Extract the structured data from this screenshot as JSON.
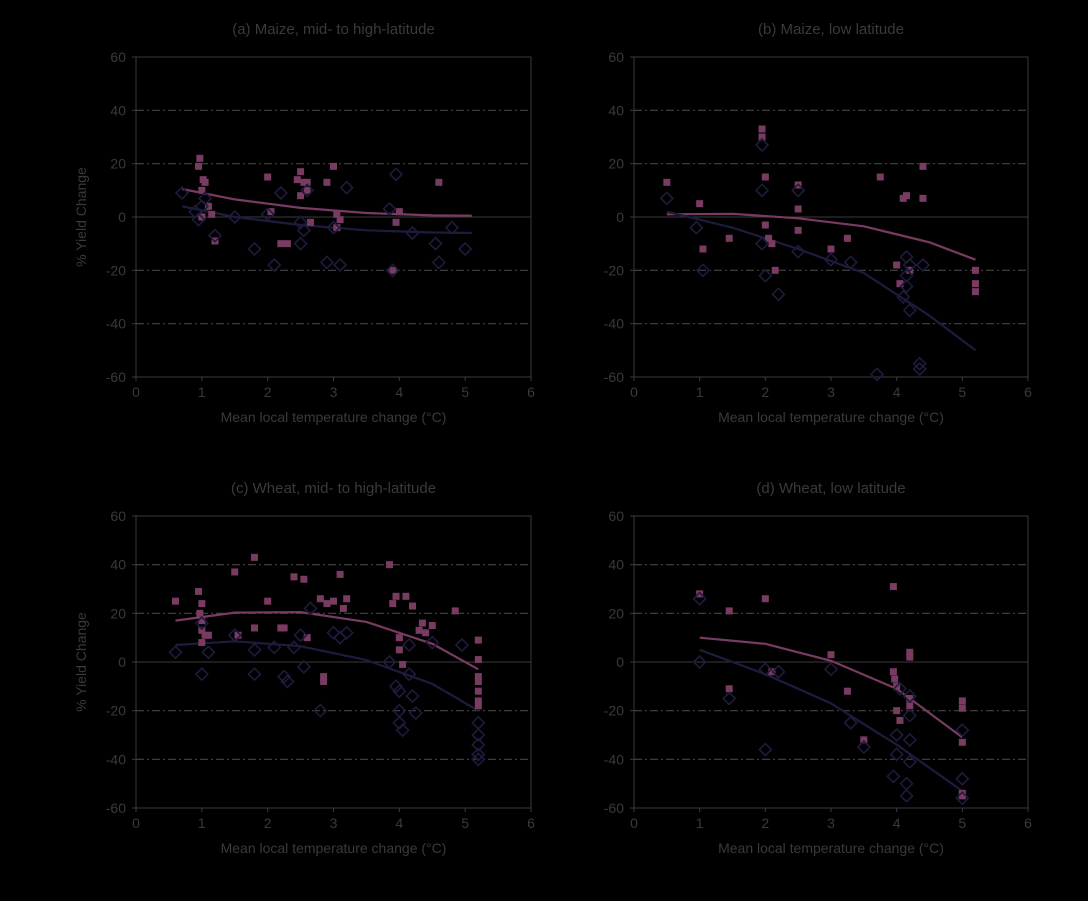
{
  "colors": {
    "background": "#000000",
    "axis": "#3a3a3a",
    "grid": "#444444",
    "square_series": "#7a3b62",
    "diamond_series": "#1e1b3e"
  },
  "chart_data": [
    {
      "type": "scatter",
      "title": "(a) Maize, mid- to high-latitude",
      "xlabel": "Mean local temperature change (°C)",
      "ylabel": "% Yield Change",
      "xlim": [
        0,
        6
      ],
      "ylim": [
        -60,
        60
      ],
      "xticks": [
        "0",
        "1",
        "2",
        "3",
        "4",
        "5",
        "6"
      ],
      "yticks": [
        "60",
        "40",
        "20",
        "0",
        "-20",
        "-40",
        "-60"
      ],
      "grid": "dash-dot horizontal lines at ±20 and ±40; solid line at 0",
      "series": [
        {
          "marker": "square",
          "x": [
            0.95,
            0.97,
            1.0,
            1.0,
            1.02,
            1.05,
            1.1,
            1.15,
            1.2,
            2.0,
            2.05,
            2.2,
            2.3,
            2.45,
            2.5,
            2.5,
            2.55,
            2.6,
            2.6,
            2.65,
            2.9,
            3.0,
            3.05,
            3.05,
            3.1,
            3.9,
            3.95,
            4.0,
            4.6
          ],
          "y": [
            19,
            22,
            10,
            0,
            14,
            13,
            4,
            1,
            -9,
            15,
            2,
            -10,
            -10,
            14,
            8,
            17,
            13,
            13,
            10,
            -2,
            13,
            19,
            1,
            -4,
            -1,
            -20,
            -2,
            2,
            13
          ]
        },
        {
          "marker": "diamond",
          "x": [
            0.7,
            0.9,
            0.95,
            1.0,
            1.05,
            1.2,
            1.5,
            1.8,
            2.0,
            2.1,
            2.2,
            2.5,
            2.5,
            2.55,
            2.6,
            2.9,
            3.0,
            3.1,
            3.2,
            3.85,
            3.9,
            3.95,
            4.2,
            4.55,
            4.6,
            4.8,
            5.0
          ],
          "y": [
            9,
            2,
            -1,
            4,
            7,
            -7,
            0,
            -12,
            1,
            -18,
            9,
            -2,
            -10,
            -5,
            10,
            -17,
            -4,
            -18,
            11,
            3,
            -20,
            16,
            -6,
            -10,
            -17,
            -4,
            -12
          ]
        }
      ],
      "fits": [
        {
          "marker": "square",
          "x": [
            0.7,
            1.5,
            2.5,
            3.5,
            4.5,
            5.1
          ],
          "y": [
            10.5,
            6.6,
            3.4,
            1.5,
            0.6,
            0.5
          ]
        },
        {
          "marker": "diamond",
          "x": [
            0.7,
            1.5,
            2.5,
            3.5,
            4.5,
            5.1
          ],
          "y": [
            4.0,
            0.0,
            -3.0,
            -5.0,
            -5.8,
            -6.0
          ]
        }
      ]
    },
    {
      "type": "scatter",
      "title": "(b) Maize, low latitude",
      "xlabel": "Mean local temperature change (°C)",
      "ylabel": "",
      "xlim": [
        0,
        6
      ],
      "ylim": [
        -60,
        60
      ],
      "xticks": [
        "0",
        "1",
        "2",
        "3",
        "4",
        "5",
        "6"
      ],
      "yticks": [
        "60",
        "40",
        "20",
        "0",
        "-20",
        "-40",
        "-60"
      ],
      "grid": "dash-dot horizontal lines at ±20 and ±40; solid line at 0",
      "series": [
        {
          "marker": "square",
          "x": [
            0.5,
            1.0,
            1.05,
            1.45,
            1.95,
            1.95,
            2.0,
            2.0,
            2.05,
            2.1,
            2.15,
            2.5,
            2.5,
            2.5,
            3.0,
            3.25,
            3.75,
            4.0,
            4.05,
            4.1,
            4.15,
            4.2,
            4.4,
            4.4,
            5.2,
            5.2,
            5.2
          ],
          "y": [
            13,
            5,
            -12,
            -8,
            33,
            30,
            15,
            -3,
            -8,
            -10,
            -20,
            12,
            3,
            -5,
            -12,
            -8,
            15,
            -18,
            -25,
            7,
            8,
            -20,
            19,
            7,
            -20,
            -25,
            -28
          ]
        },
        {
          "marker": "diamond",
          "x": [
            0.5,
            0.95,
            1.05,
            1.95,
            1.95,
            1.95,
            2.0,
            2.2,
            2.5,
            2.5,
            3.0,
            3.3,
            3.7,
            4.1,
            4.15,
            4.15,
            4.15,
            4.2,
            4.2,
            4.35,
            4.35,
            4.4
          ],
          "y": [
            7,
            -4,
            -20,
            27,
            10,
            -10,
            -22,
            -29,
            10,
            -13,
            -16,
            -17,
            -59,
            -30,
            -15,
            -22,
            -26,
            -35,
            -18,
            -55,
            -57,
            -18
          ]
        }
      ],
      "fits": [
        {
          "marker": "square",
          "x": [
            0.5,
            1.5,
            2.5,
            3.5,
            4.5,
            5.2
          ],
          "y": [
            1,
            1.2,
            -0.5,
            -3.5,
            -9.5,
            -16
          ]
        },
        {
          "marker": "diamond",
          "x": [
            0.5,
            1.5,
            2.5,
            3.5,
            4.5,
            5.2
          ],
          "y": [
            2,
            -4,
            -12,
            -21,
            -37,
            -50
          ]
        }
      ]
    },
    {
      "type": "scatter",
      "title": "(c) Wheat, mid- to high-latitude",
      "xlabel": "Mean local temperature change (°C)",
      "ylabel": "% Yield Change",
      "xlim": [
        0,
        6
      ],
      "ylim": [
        -60,
        60
      ],
      "xticks": [
        "0",
        "1",
        "2",
        "3",
        "4",
        "5",
        "6"
      ],
      "yticks": [
        "60",
        "40",
        "20",
        "0",
        "-20",
        "-40",
        "-60"
      ],
      "grid": "dash-dot horizontal lines at ±20 and ±40; solid line at 0",
      "series": [
        {
          "marker": "square",
          "x": [
            0.6,
            0.95,
            0.97,
            1.0,
            1.0,
            1.0,
            1.0,
            1.05,
            1.1,
            1.5,
            1.55,
            1.8,
            1.8,
            2.0,
            2.2,
            2.25,
            2.4,
            2.55,
            2.6,
            2.8,
            2.85,
            2.85,
            2.9,
            3.0,
            3.1,
            3.15,
            3.2,
            3.85,
            3.9,
            3.95,
            4.0,
            4.0,
            4.05,
            4.1,
            4.2,
            4.3,
            4.35,
            4.4,
            4.5,
            4.85,
            5.2,
            5.2,
            5.2,
            5.2,
            5.2,
            5.2,
            5.2
          ],
          "y": [
            25,
            29,
            20,
            24,
            17,
            13,
            8,
            11,
            11,
            37,
            11,
            43,
            14,
            25,
            14,
            14,
            35,
            34,
            10,
            26,
            -6,
            -8,
            24,
            25,
            36,
            22,
            26,
            40,
            24,
            27,
            10,
            5,
            -1,
            27,
            23,
            13,
            16,
            12,
            15,
            21,
            9,
            1,
            -6,
            -8,
            -12,
            -16,
            -18
          ]
        },
        {
          "marker": "diamond",
          "x": [
            0.6,
            1.0,
            1.0,
            1.1,
            1.5,
            1.8,
            1.8,
            2.1,
            2.25,
            2.3,
            2.4,
            2.5,
            2.55,
            2.65,
            2.8,
            3.0,
            3.1,
            3.2,
            3.85,
            3.95,
            4.0,
            4.0,
            4.0,
            4.05,
            4.15,
            4.15,
            4.2,
            4.25,
            4.5,
            4.95,
            5.2,
            5.2,
            5.2,
            5.2,
            5.2
          ],
          "y": [
            4,
            16,
            -5,
            4,
            11,
            5,
            -5,
            6,
            -6,
            -8,
            6,
            11,
            -2,
            22,
            -20,
            12,
            10,
            12,
            0,
            -10,
            -12,
            -20,
            -25,
            -28,
            7,
            -5,
            -14,
            -21,
            8,
            7,
            -25,
            -30,
            -34,
            -38,
            -40
          ]
        }
      ],
      "fits": [
        {
          "marker": "square",
          "x": [
            0.6,
            1.5,
            2.5,
            3.5,
            4.5,
            5.2
          ],
          "y": [
            17,
            20.3,
            20.5,
            16.5,
            7.5,
            -3
          ]
        },
        {
          "marker": "diamond",
          "x": [
            0.6,
            1.5,
            2.5,
            3.5,
            4.5,
            5.2
          ],
          "y": [
            7,
            8.5,
            6.5,
            0.8,
            -9,
            -20
          ]
        }
      ]
    },
    {
      "type": "scatter",
      "title": "(d) Wheat, low latitude",
      "xlabel": "Mean local temperature change (°C)",
      "ylabel": "",
      "xlim": [
        0,
        6
      ],
      "ylim": [
        -60,
        60
      ],
      "xticks": [
        "0",
        "1",
        "2",
        "3",
        "4",
        "5",
        "6"
      ],
      "yticks": [
        "60",
        "40",
        "20",
        "0",
        "-20",
        "-40",
        "-60"
      ],
      "grid": "dash-dot horizontal lines at ±20 and ±40; solid line at 0",
      "series": [
        {
          "marker": "square",
          "x": [
            1.0,
            1.45,
            1.45,
            2.0,
            2.1,
            3.0,
            3.25,
            3.5,
            3.95,
            3.95,
            3.97,
            4.0,
            4.0,
            4.05,
            4.2,
            4.2,
            4.2,
            4.2,
            5.0,
            5.0,
            5.0,
            5.0,
            5.0
          ],
          "y": [
            28,
            21,
            -11,
            26,
            -4,
            3,
            -12,
            -32,
            31,
            -4,
            -7,
            -10,
            -20,
            -24,
            4,
            2,
            -15,
            -18,
            -16,
            -19,
            -33,
            -54,
            -55
          ]
        },
        {
          "marker": "diamond",
          "x": [
            1.0,
            1.0,
            1.45,
            2.0,
            2.0,
            2.2,
            3.0,
            3.3,
            3.5,
            3.95,
            4.0,
            4.0,
            4.05,
            4.15,
            4.15,
            4.2,
            4.2,
            4.2,
            4.2,
            5.0,
            5.0,
            5.0
          ],
          "y": [
            26,
            0,
            -15,
            -36,
            -3,
            -4,
            -3,
            -25,
            -35,
            -47,
            -30,
            -38,
            -11,
            -50,
            -55,
            -14,
            -22,
            -32,
            -41,
            -28,
            -48,
            -56
          ]
        }
      ],
      "fits": [
        {
          "marker": "square",
          "x": [
            1.0,
            2.0,
            3.0,
            4.0,
            5.0
          ],
          "y": [
            10,
            7.5,
            0.5,
            -11,
            -31
          ]
        },
        {
          "marker": "diamond",
          "x": [
            1.0,
            2.0,
            3.0,
            4.0,
            5.0
          ],
          "y": [
            5,
            -5,
            -17,
            -34,
            -53
          ]
        }
      ]
    }
  ]
}
